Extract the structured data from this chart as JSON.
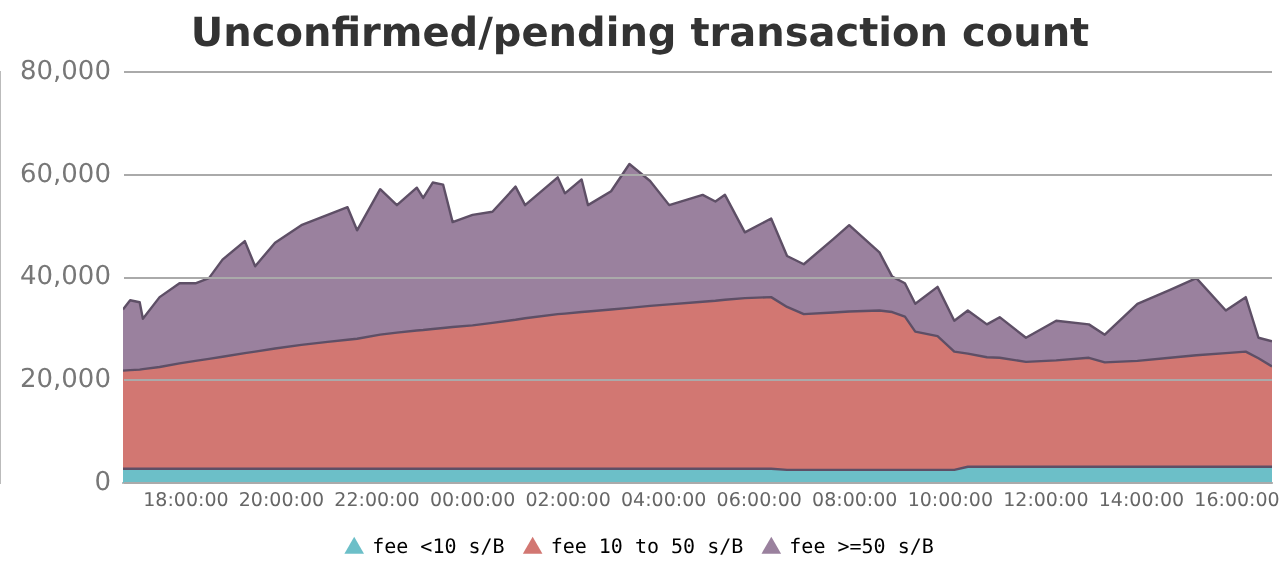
{
  "chart_data": {
    "type": "area",
    "title": "Unconfirmed/pending transaction count",
    "stacked": true,
    "x": [
      "2000-01-01T16:41",
      "2000-01-01T16:50",
      "2000-01-01T17:02",
      "2000-01-01T17:06",
      "2000-01-01T17:27",
      "2000-01-01T17:52",
      "2000-01-01T18:12",
      "2000-01-01T18:29",
      "2000-01-01T18:46",
      "2000-01-01T19:14",
      "2000-01-01T19:27",
      "2000-01-01T19:52",
      "2000-01-01T20:25",
      "2000-01-01T20:58",
      "2000-01-01T21:23",
      "2000-01-01T21:35",
      "2000-01-01T22:04",
      "2000-01-01T22:25",
      "2000-01-01T22:50",
      "2000-01-01T22:58",
      "2000-01-01T23:10",
      "2000-01-01T23:23",
      "2000-01-01T23:35",
      "2000-01-02T00:00",
      "2000-01-02T00:25",
      "2000-01-02T00:54",
      "2000-01-02T01:06",
      "2000-01-02T01:47",
      "2000-01-02T01:56",
      "2000-01-02T02:17",
      "2000-01-02T02:25",
      "2000-01-02T02:54",
      "2000-01-02T03:17",
      "2000-01-02T03:43",
      "2000-01-02T04:07",
      "2000-01-02T04:49",
      "2000-01-02T05:05",
      "2000-01-02T05:17",
      "2000-01-02T05:42",
      "2000-01-02T06:15",
      "2000-01-02T06:35",
      "2000-01-02T06:56",
      "2000-01-02T07:33",
      "2000-01-02T07:53",
      "2000-01-02T08:31",
      "2000-01-02T08:47",
      "2000-01-02T09:03",
      "2000-01-02T09:16",
      "2000-01-02T09:44",
      "2000-01-02T10:05",
      "2000-01-02T10:22",
      "2000-01-02T10:46",
      "2000-01-02T11:02",
      "2000-01-02T11:35",
      "2000-01-02T12:13",
      "2000-01-02T12:54",
      "2000-01-02T13:14",
      "2000-01-02T13:55",
      "2000-01-02T14:36",
      "2000-01-02T15:09",
      "2000-01-02T15:46",
      "2000-01-02T16:11",
      "2000-01-02T16:27",
      "2000-01-02T16:44"
    ],
    "series": [
      {
        "name": "fee <10 s/B",
        "color": "#6cbfc8",
        "values": [
          2800,
          2800,
          2800,
          2800,
          2800,
          2800,
          2800,
          2800,
          2800,
          2800,
          2800,
          2800,
          2800,
          2800,
          2800,
          2800,
          2800,
          2800,
          2800,
          2800,
          2800,
          2800,
          2800,
          2800,
          2800,
          2800,
          2800,
          2800,
          2800,
          2800,
          2800,
          2800,
          2800,
          2800,
          2800,
          2800,
          2800,
          2800,
          2800,
          2800,
          2600,
          2600,
          2600,
          2600,
          2600,
          2600,
          2600,
          2600,
          2600,
          2600,
          3200,
          3200,
          3200,
          3200,
          3200,
          3200,
          3200,
          3200,
          3200,
          3200,
          3200,
          3200,
          3200,
          3200
        ]
      },
      {
        "name": "fee 10 to 50 s/B",
        "color": "#d27772",
        "values": [
          19100,
          19200,
          19300,
          19400,
          19800,
          20500,
          21000,
          21400,
          21800,
          22500,
          22800,
          23400,
          24100,
          24700,
          25100,
          25300,
          26100,
          26500,
          26900,
          27000,
          27200,
          27400,
          27600,
          27900,
          28400,
          29000,
          29300,
          30100,
          30200,
          30500,
          30600,
          31000,
          31300,
          31700,
          32000,
          32500,
          32700,
          32900,
          33200,
          33400,
          31700,
          30300,
          30600,
          30800,
          31000,
          30700,
          29800,
          26900,
          26000,
          23000,
          22000,
          21300,
          21200,
          20400,
          20700,
          21200,
          20300,
          20600,
          21200,
          21700,
          22100,
          22400,
          21100,
          19500
        ]
      },
      {
        "name": "fee >=50 s/B",
        "color": "#9a819e",
        "values": [
          11900,
          13600,
          13100,
          9800,
          13600,
          15600,
          15100,
          15700,
          18900,
          21800,
          16600,
          20600,
          23300,
          24700,
          25800,
          21100,
          28300,
          24800,
          27800,
          25700,
          28500,
          27900,
          20400,
          21500,
          21600,
          25900,
          22000,
          26600,
          23400,
          25800,
          20700,
          23000,
          28000,
          24300,
          19300,
          20800,
          19300,
          20400,
          12800,
          15300,
          9900,
          9700,
          14300,
          16800,
          11300,
          6900,
          6500,
          5400,
          9600,
          6000,
          8400,
          6400,
          7900,
          4700,
          7700,
          6500,
          5400,
          11100,
          13200,
          15000,
          8300,
          10600,
          4000,
          4900
        ]
      }
    ],
    "xlim": [
      "2000-01-01T16:41",
      "2000-01-02T16:44"
    ],
    "xticks": [
      {
        "value": "2000-01-01T18:00",
        "label": "18:00:00"
      },
      {
        "value": "2000-01-01T20:00",
        "label": "20:00:00"
      },
      {
        "value": "2000-01-01T22:00",
        "label": "22:00:00"
      },
      {
        "value": "2000-01-02T00:00",
        "label": "00:00:00"
      },
      {
        "value": "2000-01-02T02:00",
        "label": "02:00:00"
      },
      {
        "value": "2000-01-02T04:00",
        "label": "04:00:00"
      },
      {
        "value": "2000-01-02T06:00",
        "label": "06:00:00"
      },
      {
        "value": "2000-01-02T08:00",
        "label": "08:00:00"
      },
      {
        "value": "2000-01-02T10:00",
        "label": "10:00:00"
      },
      {
        "value": "2000-01-02T12:00",
        "label": "12:00:00"
      },
      {
        "value": "2000-01-02T14:00",
        "label": "14:00:00"
      },
      {
        "value": "2000-01-02T16:00",
        "label": "16:00:00"
      }
    ],
    "ylim": [
      0,
      80000
    ],
    "yticks": [
      {
        "value": 0,
        "label": "0"
      },
      {
        "value": 20000,
        "label": "20,000"
      },
      {
        "value": 40000,
        "label": "40,000"
      },
      {
        "value": 60000,
        "label": "60,000"
      },
      {
        "value": 80000,
        "label": "80,000"
      }
    ],
    "grid": "y",
    "legend": "bottom"
  }
}
